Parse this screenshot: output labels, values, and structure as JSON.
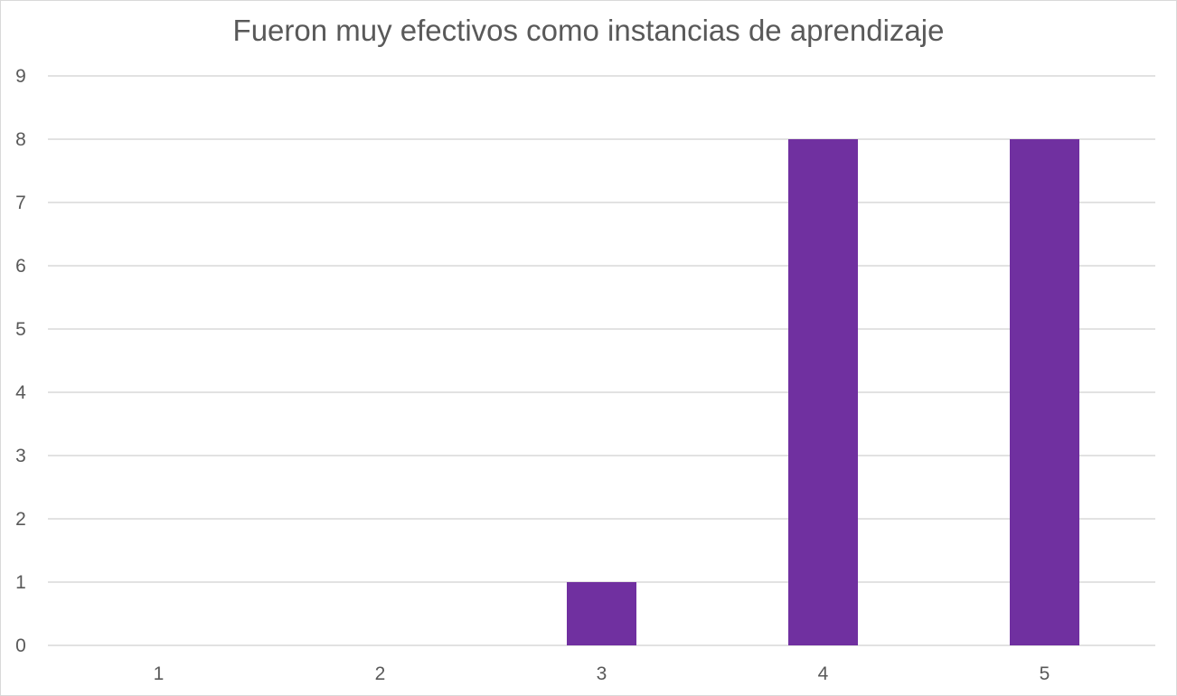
{
  "chart_data": {
    "type": "bar",
    "title": "Fueron muy efectivos como instancias de aprendizaje",
    "categories": [
      "1",
      "2",
      "3",
      "4",
      "5"
    ],
    "values": [
      0,
      0,
      1,
      8,
      8
    ],
    "ylim": [
      0,
      9
    ],
    "yticks": [
      "0",
      "1",
      "2",
      "3",
      "4",
      "5",
      "6",
      "7",
      "8",
      "9"
    ],
    "xlabel": "",
    "ylabel": "",
    "grid": true,
    "legend": "none",
    "bar_color": "#7030A0",
    "grid_color": "#d9d9d9",
    "text_color": "#595959"
  }
}
